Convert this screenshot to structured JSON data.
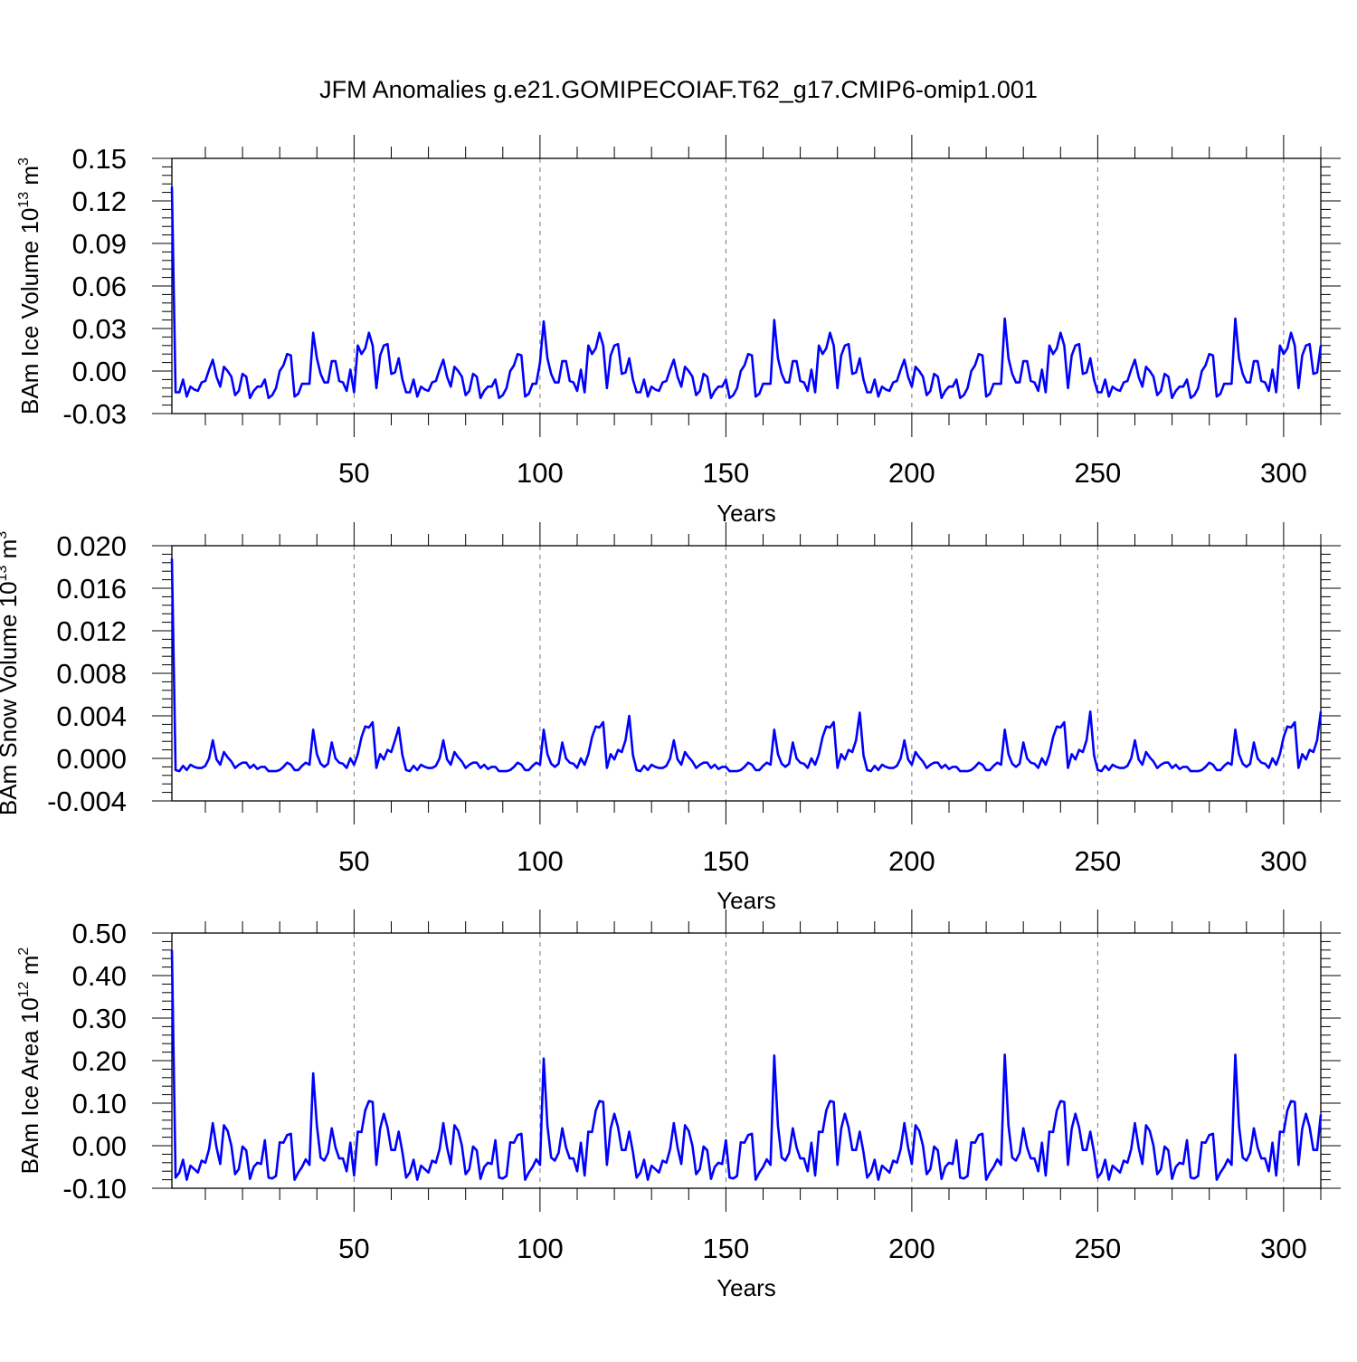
{
  "title": "JFM Anomalies g.e21.GOMIPECOIAF.T62_g17.CMIP6-omip1.001",
  "line_color": "#0000ff",
  "chart_data": [
    {
      "type": "line",
      "ylabel": "BAm Ice Volume 10",
      "ylabel_exp": "13",
      "ylabel_unit": " m",
      "ylabel_unit_exp": "3",
      "xlabel": "Years",
      "xlim": [
        1,
        310
      ],
      "ylim": [
        -0.03,
        0.15
      ],
      "x_ticks": [
        50,
        100,
        150,
        200,
        250,
        300
      ],
      "x_tick_labels": [
        "50",
        "100",
        "150",
        "200",
        "250",
        "300"
      ],
      "y_ticks": [
        -0.03,
        0.0,
        0.03,
        0.06,
        0.09,
        0.12,
        0.15
      ],
      "y_tick_labels": [
        "-0.03",
        "0.00",
        "0.03",
        "0.06",
        "0.09",
        "0.12",
        "0.15"
      ],
      "base_period": 62,
      "series": [
        {
          "name": "BAm Ice Volume",
          "first": {
            "x": 1,
            "y": 0.13
          },
          "base": [
            -0.015,
            -0.015,
            -0.006,
            -0.018,
            -0.011,
            -0.013,
            -0.014,
            -0.008,
            -0.007,
            0.001,
            0.008,
            -0.004,
            -0.011,
            0.003,
            0.0,
            -0.004,
            -0.017,
            -0.014,
            -0.002,
            -0.004,
            -0.019,
            -0.014,
            -0.011,
            -0.011,
            -0.006,
            -0.019,
            -0.017,
            -0.012,
            0.0,
            0.004,
            0.012,
            0.011,
            -0.018,
            -0.016,
            -0.009,
            -0.009,
            -0.009,
            0.027,
            0.009,
            -0.002,
            -0.008,
            -0.008,
            0.007,
            0.007,
            -0.007,
            -0.008,
            -0.014,
            0.001,
            -0.015,
            0.018,
            0.012,
            0.016,
            0.027,
            0.018,
            -0.012,
            0.011,
            0.018,
            0.019,
            -0.002,
            -0.001,
            0.009,
            -0.006
          ],
          "drift": [
            0,
            0.0,
            0.0,
            0.0,
            0.0
          ],
          "overrides": [
            [
              100,
              0.006
            ],
            [
              101,
              0.035
            ],
            [
              163,
              0.036
            ],
            [
              225,
              0.037
            ],
            [
              287,
              0.037
            ],
            [
              310,
              0.018
            ]
          ]
        }
      ]
    },
    {
      "type": "line",
      "ylabel": "BAm Snow Volume 10",
      "ylabel_exp": "13",
      "ylabel_unit": " m",
      "ylabel_unit_exp": "3",
      "xlabel": "Years",
      "xlim": [
        1,
        310
      ],
      "ylim": [
        -0.004,
        0.02
      ],
      "x_ticks": [
        50,
        100,
        150,
        200,
        250,
        300
      ],
      "x_tick_labels": [
        "50",
        "100",
        "150",
        "200",
        "250",
        "300"
      ],
      "y_ticks": [
        -0.004,
        0.0,
        0.004,
        0.008,
        0.012,
        0.016,
        0.02
      ],
      "y_tick_labels": [
        "-0.004",
        "0.000",
        "0.004",
        "0.008",
        "0.012",
        "0.016",
        "0.020"
      ],
      "base_period": 62,
      "series": [
        {
          "name": "BAm Snow Volume",
          "first": {
            "x": 1,
            "y": 0.0188
          },
          "base": [
            -0.0011,
            -0.0012,
            -0.0007,
            -0.0011,
            -0.0006,
            -0.0008,
            -0.0009,
            -0.0009,
            -0.0007,
            0.0,
            0.0017,
            -0.0001,
            -0.0006,
            0.0006,
            0.0001,
            -0.0003,
            -0.0009,
            -0.0006,
            -0.0004,
            -0.0004,
            -0.0009,
            -0.0006,
            -0.001,
            -0.0008,
            -0.0008,
            -0.0012,
            -0.0012,
            -0.0012,
            -0.0011,
            -0.0008,
            -0.0004,
            -0.0006,
            -0.0011,
            -0.0011,
            -0.0007,
            -0.0004,
            -0.0006,
            0.0027,
            0.0004,
            -0.0005,
            -0.0008,
            -0.0005,
            0.0015,
            0.0,
            -0.0004,
            -0.0005,
            -0.0009,
            0.0,
            -0.0006,
            0.0004,
            0.002,
            0.003,
            0.0029,
            0.0034,
            -0.0009,
            0.0004,
            -0.0001,
            0.0008,
            0.0006,
            0.0017,
            0.0029,
            0.0003
          ],
          "drift": [
            0,
            0.0,
            0.0,
            0.0,
            0.0
          ],
          "overrides": [
            [
              124,
              0.004
            ],
            [
              186,
              0.0043
            ],
            [
              248,
              0.0044
            ],
            [
              310,
              0.0044
            ]
          ]
        }
      ]
    },
    {
      "type": "line",
      "ylabel": "BAm Ice Area 10",
      "ylabel_exp": "12",
      "ylabel_unit": " m",
      "ylabel_unit_exp": "2",
      "xlabel": "Years",
      "xlim": [
        1,
        310
      ],
      "ylim": [
        -0.1,
        0.5
      ],
      "x_ticks": [
        50,
        100,
        150,
        200,
        250,
        300
      ],
      "x_tick_labels": [
        "50",
        "100",
        "150",
        "200",
        "250",
        "300"
      ],
      "y_ticks": [
        -0.1,
        0.0,
        0.1,
        0.2,
        0.3,
        0.4,
        0.5
      ],
      "y_tick_labels": [
        "-0.10",
        "0.00",
        "0.10",
        "0.20",
        "0.30",
        "0.40",
        "0.50"
      ],
      "base_period": 62,
      "series": [
        {
          "name": "BAm Ice Area",
          "first": {
            "x": 1,
            "y": 0.46
          },
          "base": [
            -0.075,
            -0.063,
            -0.033,
            -0.08,
            -0.047,
            -0.055,
            -0.063,
            -0.035,
            -0.04,
            -0.008,
            0.053,
            -0.004,
            -0.043,
            0.048,
            0.035,
            0.0,
            -0.067,
            -0.055,
            -0.002,
            -0.011,
            -0.078,
            -0.05,
            -0.04,
            -0.043,
            0.013,
            -0.075,
            -0.077,
            -0.071,
            0.008,
            0.007,
            0.025,
            0.028,
            -0.08,
            -0.063,
            -0.05,
            -0.032,
            -0.045,
            0.17,
            0.047,
            -0.028,
            -0.035,
            -0.017,
            0.041,
            -0.004,
            -0.03,
            -0.03,
            -0.06,
            0.007,
            -0.07,
            0.033,
            0.032,
            0.083,
            0.105,
            0.103,
            -0.045,
            0.04,
            0.075,
            0.043,
            -0.01,
            -0.01,
            0.033,
            -0.015
          ],
          "drift": [
            0,
            0.0,
            0.0,
            0.0,
            0.0
          ],
          "overrides": [
            [
              101,
              0.205
            ],
            [
              163,
              0.212
            ],
            [
              225,
              0.214
            ],
            [
              287,
              0.214
            ],
            [
              310,
              0.073
            ]
          ]
        }
      ]
    }
  ]
}
